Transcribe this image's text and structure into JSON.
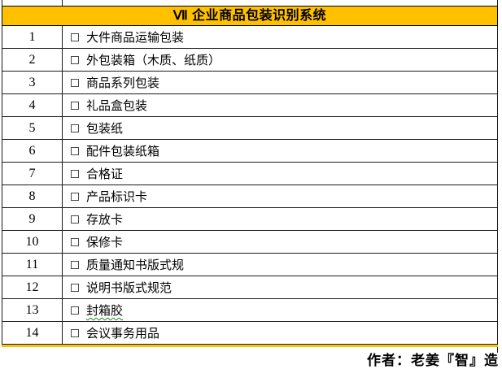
{
  "header": {
    "title": "Ⅶ 企业商品包装识别系统"
  },
  "rows": [
    {
      "num": "1",
      "label": "大件商品运输包装",
      "underline": false
    },
    {
      "num": "2",
      "label": "外包装箱（木质、纸质）",
      "underline": false
    },
    {
      "num": "3",
      "label": "商品系列包装",
      "underline": false
    },
    {
      "num": "4",
      "label": "礼品盒包装",
      "underline": false
    },
    {
      "num": "5",
      "label": "包装纸",
      "underline": false
    },
    {
      "num": "6",
      "label": "配件包装纸箱",
      "underline": false
    },
    {
      "num": "7",
      "label": "合格证",
      "underline": false
    },
    {
      "num": "8",
      "label": "产品标识卡",
      "underline": false
    },
    {
      "num": "9",
      "label": "存放卡",
      "underline": false
    },
    {
      "num": "10",
      "label": "保修卡",
      "underline": false
    },
    {
      "num": "11",
      "label": "质量通知书版式规",
      "underline": false
    },
    {
      "num": "12",
      "label": "说明书版式规范",
      "underline": false
    },
    {
      "num": "13",
      "label": "封箱胶",
      "underline": true
    },
    {
      "num": "14",
      "label": "会议事务用品",
      "underline": false
    }
  ],
  "footer": {
    "author": "作者：老姜『智』造"
  },
  "colors": {
    "header_bg": "#FFC000",
    "border": "#1a1a1a",
    "spellcheck_underline": "#1e8a1e"
  }
}
